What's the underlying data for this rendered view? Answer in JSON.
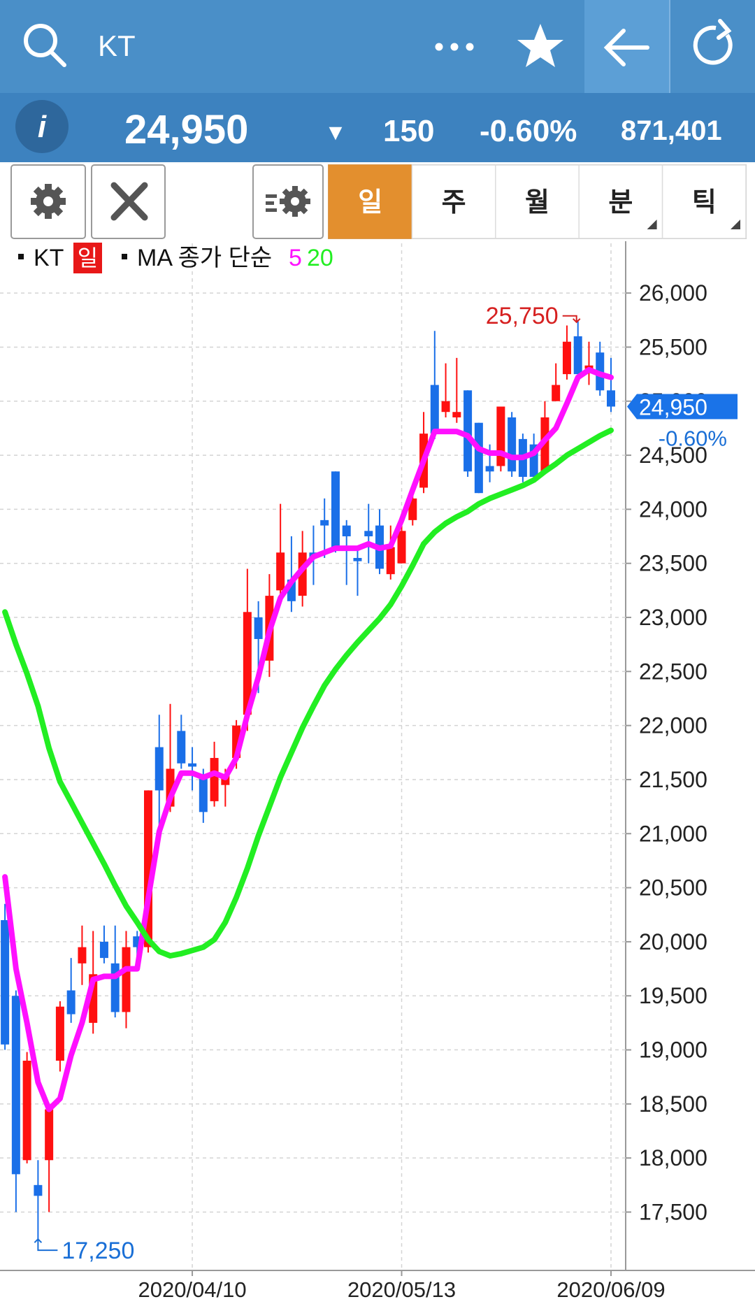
{
  "header": {
    "title": "KT"
  },
  "quote": {
    "price": "24,950",
    "change_arrow": "▼",
    "change": "150",
    "change_percent": "-0.60%",
    "volume": "871,401"
  },
  "tabs": [
    "일",
    "주",
    "월",
    "분",
    "틱"
  ],
  "chart_data": {
    "type": "candlestick",
    "legend_period": "일",
    "legend_ma_label": "MA 종가 단순",
    "up_color": "#ff1010",
    "down_color": "#1a6fe8",
    "grid": true,
    "categories": [
      null,
      null,
      null,
      null,
      null,
      null,
      null,
      null,
      null,
      null,
      null,
      null,
      null,
      null,
      null,
      null,
      null,
      "2020/04/10",
      null,
      null,
      null,
      null,
      null,
      null,
      null,
      null,
      null,
      null,
      null,
      null,
      null,
      null,
      null,
      null,
      null,
      null,
      "2020/05/13",
      null,
      null,
      null,
      null,
      null,
      null,
      null,
      null,
      null,
      null,
      null,
      null,
      null,
      null,
      null,
      null,
      null,
      null,
      "2020/06/09"
    ],
    "series": [
      {
        "name": "KT",
        "open": [
          20200,
          19500,
          17980,
          17750,
          17980,
          18900,
          19550,
          19800,
          19250,
          20000,
          19800,
          19350,
          20050,
          19950,
          21800,
          21250,
          21950,
          21650,
          21550,
          21300,
          21450,
          21700,
          22100,
          23000,
          22600,
          23250,
          23350,
          23200,
          23600,
          23900,
          24350,
          23850,
          23550,
          23800,
          23850,
          23400,
          23500,
          23900,
          24200,
          25150,
          24900,
          24850,
          25100,
          24800,
          24400,
          24400,
          24850,
          24650,
          24600,
          24350,
          25000,
          25250,
          25600,
          25300,
          25450,
          25100
        ],
        "high": [
          20350,
          19550,
          18980,
          17980,
          18500,
          19450,
          19850,
          20150,
          20100,
          20150,
          20150,
          20100,
          20100,
          21400,
          22100,
          22200,
          22100,
          21800,
          21600,
          21850,
          21600,
          22050,
          23450,
          23150,
          23400,
          24050,
          23750,
          23800,
          23850,
          24100,
          24350,
          23900,
          23650,
          24050,
          24000,
          23850,
          23850,
          24150,
          24900,
          25650,
          25350,
          25400,
          25100,
          24800,
          24600,
          24950,
          24900,
          24700,
          24700,
          25000,
          25350,
          25700,
          25750,
          25550,
          25550,
          25400
        ],
        "low": [
          19000,
          17500,
          17950,
          17250,
          17500,
          18800,
          19250,
          19600,
          19150,
          19800,
          19300,
          19200,
          19850,
          19900,
          21000,
          21200,
          21600,
          21400,
          21100,
          21250,
          21250,
          21600,
          21950,
          22300,
          22450,
          23150,
          23050,
          23100,
          23300,
          23550,
          23600,
          23300,
          23200,
          23500,
          23400,
          23350,
          23500,
          23850,
          24150,
          24650,
          24850,
          24800,
          24300,
          24150,
          24250,
          24350,
          24300,
          24250,
          24250,
          24350,
          25000,
          25200,
          25200,
          25150,
          25050,
          24900
        ],
        "close": [
          19050,
          17850,
          18900,
          17650,
          18450,
          19400,
          19330,
          19950,
          19700,
          19850,
          19350,
          19950,
          19950,
          21400,
          21400,
          21600,
          21650,
          21620,
          21200,
          21700,
          21550,
          22000,
          23050,
          22800,
          23200,
          23600,
          23150,
          23600,
          23550,
          23850,
          23650,
          23750,
          23520,
          23750,
          23450,
          23650,
          23800,
          24100,
          24700,
          24700,
          25000,
          24900,
          24350,
          24150,
          24350,
          24950,
          24350,
          24300,
          24300,
          24850,
          25150,
          25550,
          25250,
          25330,
          25100,
          24950
        ]
      },
      {
        "name": "5",
        "color": "#ff10ff",
        "values": [
          20600,
          19750,
          19250,
          18700,
          18450,
          18550,
          18950,
          19250,
          19650,
          19680,
          19680,
          19750,
          19750,
          20400,
          21020,
          21330,
          21560,
          21560,
          21520,
          21560,
          21520,
          21700,
          22100,
          22450,
          22870,
          23180,
          23330,
          23450,
          23560,
          23600,
          23640,
          23640,
          23640,
          23680,
          23640,
          23660,
          23900,
          24180,
          24450,
          24720,
          24720,
          24720,
          24680,
          24560,
          24520,
          24520,
          24480,
          24480,
          24520,
          24640,
          24750,
          24980,
          25220,
          25290,
          25250,
          25220
        ]
      },
      {
        "name": "20",
        "color": "#22ee22",
        "values": [
          23050,
          22750,
          22480,
          22180,
          21790,
          21480,
          21290,
          21100,
          20910,
          20720,
          20520,
          20330,
          20180,
          20020,
          19910,
          19870,
          19890,
          19920,
          19950,
          20020,
          20180,
          20410,
          20680,
          20980,
          21250,
          21520,
          21750,
          21980,
          22180,
          22370,
          22520,
          22650,
          22770,
          22880,
          22990,
          23120,
          23290,
          23480,
          23680,
          23790,
          23870,
          23930,
          23980,
          24050,
          24100,
          24140,
          24180,
          24220,
          24270,
          24350,
          24420,
          24500,
          24560,
          24620,
          24680,
          24730
        ]
      }
    ],
    "ylim": [
      16960,
      26460
    ],
    "yticks": [
      {
        "value": 17500,
        "label": "17,500"
      },
      {
        "value": 18000,
        "label": "18,000"
      },
      {
        "value": 18500,
        "label": "18,500"
      },
      {
        "value": 19000,
        "label": "19,000"
      },
      {
        "value": 19500,
        "label": "19,500"
      },
      {
        "value": 20000,
        "label": "20,000"
      },
      {
        "value": 20500,
        "label": "20,500"
      },
      {
        "value": 21000,
        "label": "21,000"
      },
      {
        "value": 21500,
        "label": "21,500"
      },
      {
        "value": 22000,
        "label": "22,000"
      },
      {
        "value": 22500,
        "label": "22,500"
      },
      {
        "value": 23000,
        "label": "23,000"
      },
      {
        "value": 23500,
        "label": "23,500"
      },
      {
        "value": 24000,
        "label": "24,000"
      },
      {
        "value": 24500,
        "label": "24,500"
      },
      {
        "value": 25000,
        "label": "25,000"
      },
      {
        "value": 25500,
        "label": "25,500"
      },
      {
        "value": 26000,
        "label": "26,000"
      }
    ],
    "annotations": [
      {
        "text": "25,750",
        "value": 25750,
        "color": "#d62020"
      },
      {
        "text": "17,250",
        "value": 17250,
        "color": "#1a6fd6"
      }
    ],
    "last_price": {
      "value": 24950,
      "label": "24,950"
    },
    "last_change": "-0.60%"
  }
}
